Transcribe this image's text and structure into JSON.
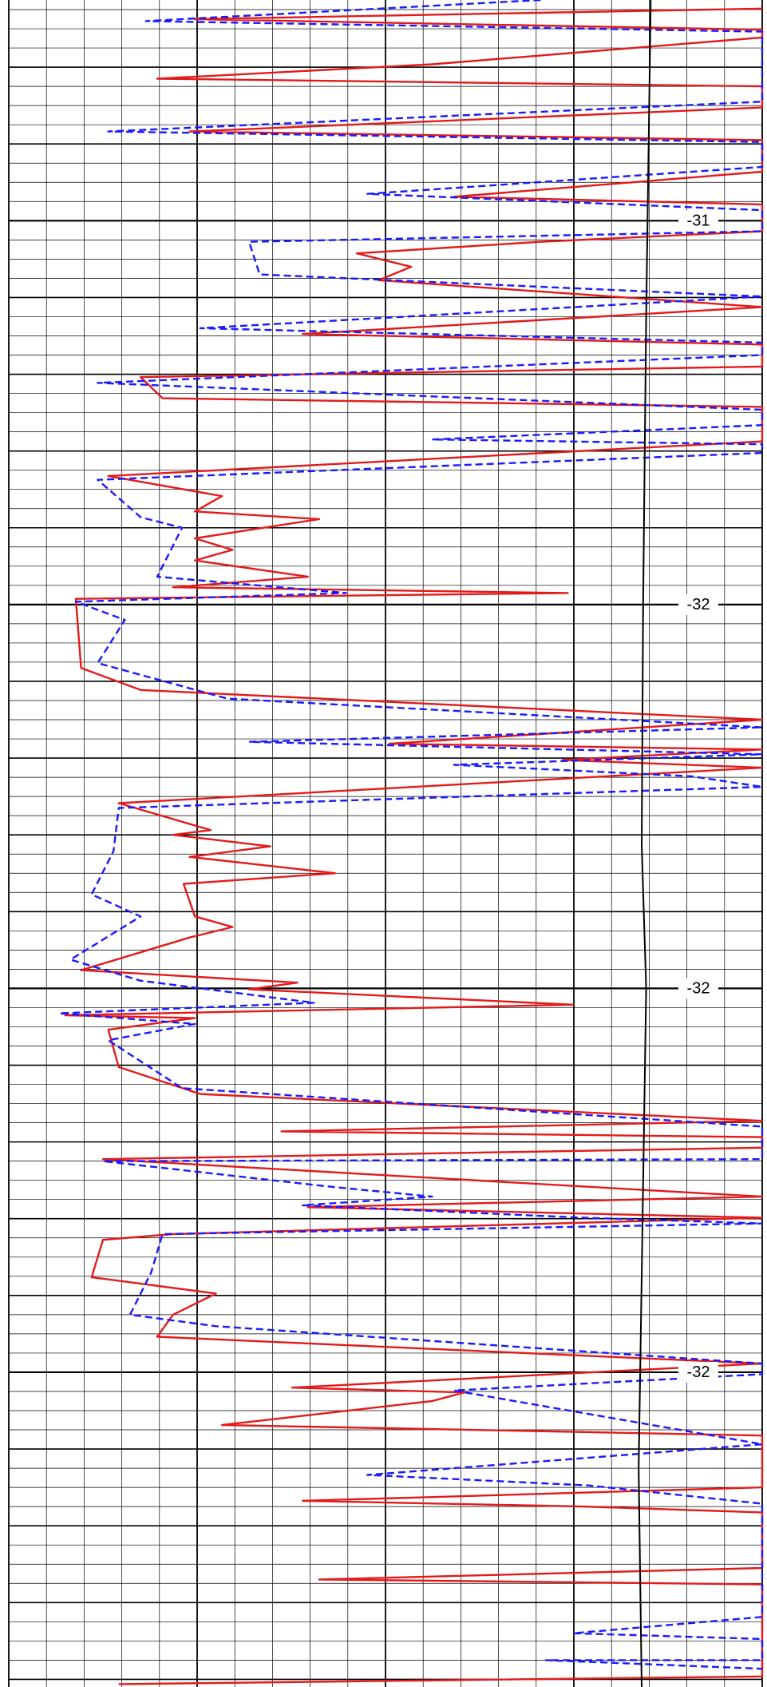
{
  "chart_data": {
    "type": "line",
    "xlim": [
      0,
      100
    ],
    "ylim": [
      -30.97,
      -32.728
    ],
    "yticks": [
      -31.2,
      -31.6,
      -32.0,
      -32.4
    ],
    "ytick_labels": [
      "-31",
      "-32",
      "-32",
      "-32"
    ],
    "grid": true,
    "series": [
      {
        "color": "#e41a1a",
        "dash": false,
        "values": [
          100,
          24.7,
          100,
          100,
          56.2,
          19.7,
          100,
          100,
          24.0,
          100,
          100,
          59.1,
          100,
          100,
          70.6,
          46.2,
          53.4,
          49.1,
          100,
          39.0,
          100,
          100,
          17.5,
          20.4,
          100,
          100,
          13.2,
          28.3,
          24.7,
          41.2,
          24.7,
          29.7,
          24.7,
          39.7,
          21.8,
          74.2,
          8.9,
          9.6,
          17.5,
          100,
          50.5,
          100,
          73.5,
          100,
          14.6,
          26.8,
          21.8,
          34.7,
          24.0,
          43.3,
          23.2,
          24.7,
          29.7,
          24.0,
          9.6,
          38.3,
          31.9,
          74.9,
          7.5,
          24.7,
          13.2,
          14.6,
          25.4,
          100,
          36.2,
          100,
          100,
          12.5,
          100,
          39.7,
          100,
          21.8,
          12.5,
          11.0,
          27.5,
          21.8,
          19.7,
          100,
          37.6,
          60.5,
          56.2,
          28.3,
          100,
          100,
          39.0,
          76.3,
          100,
          100,
          41.2,
          100,
          100,
          14.6
        ],
        "depth": [
          -30.979,
          -30.99,
          -31.001,
          -31.009,
          -31.037,
          -31.052,
          -31.06,
          -31.082,
          -31.107,
          -31.116,
          -31.149,
          -31.175,
          -31.183,
          -31.211,
          -31.222,
          -31.234,
          -31.248,
          -31.262,
          -31.29,
          -31.318,
          -31.329,
          -31.352,
          -31.363,
          -31.385,
          -31.394,
          -31.43,
          -31.466,
          -31.487,
          -31.503,
          -31.511,
          -31.531,
          -31.543,
          -31.554,
          -31.571,
          -31.582,
          -31.588,
          -31.594,
          -31.666,
          -31.689,
          -31.72,
          -31.745,
          -31.751,
          -31.762,
          -31.77,
          -31.807,
          -31.835,
          -31.84,
          -31.852,
          -31.863,
          -31.88,
          -31.891,
          -31.925,
          -31.936,
          -31.947,
          -31.981,
          -31.994,
          -32.001,
          -32.017,
          -32.028,
          -32.031,
          -32.043,
          -32.082,
          -32.11,
          -32.138,
          -32.149,
          -32.155,
          -32.166,
          -32.178,
          -32.217,
          -32.228,
          -32.239,
          -32.256,
          -32.262,
          -32.301,
          -32.318,
          -32.34,
          -32.363,
          -32.391,
          -32.416,
          -32.421,
          -32.43,
          -32.455,
          -32.466,
          -32.52,
          -32.534,
          -32.54,
          -32.546,
          -32.604,
          -32.616,
          -32.621,
          -32.717,
          -32.725
        ]
      },
      {
        "color": "#1a1aff",
        "dash": true,
        "values": [
          70.6,
          18.2,
          100,
          100,
          13.2,
          100,
          100,
          47.6,
          100,
          100,
          31.9,
          33.3,
          100,
          25.4,
          100,
          100,
          11.8,
          100,
          100,
          56.2,
          100,
          100,
          11.8,
          17.5,
          23.0,
          19.7,
          44.8,
          8.9,
          15.4,
          11.8,
          29.0,
          100,
          31.9,
          100,
          59.1,
          90.7,
          100,
          14.6,
          13.9,
          11.0,
          17.5,
          8.2,
          17.5,
          40.5,
          6.7,
          24.7,
          13.2,
          23.0,
          100,
          100,
          12.5,
          41.9,
          56.2,
          39.0,
          76.3,
          100,
          20.4,
          18.9,
          16.1,
          27.5,
          100,
          100,
          59.1,
          100,
          47.6,
          77.0,
          100,
          100,
          74.9,
          100,
          100,
          71.3,
          100
        ],
        "depth": [
          -30.97,
          -30.992,
          -31.003,
          -31.076,
          -31.107,
          -31.118,
          -31.144,
          -31.172,
          -31.189,
          -31.211,
          -31.222,
          -31.256,
          -31.279,
          -31.312,
          -31.327,
          -31.34,
          -31.369,
          -31.397,
          -31.413,
          -31.428,
          -31.433,
          -31.442,
          -31.47,
          -31.509,
          -31.52,
          -31.571,
          -31.588,
          -31.597,
          -31.616,
          -31.661,
          -31.698,
          -31.728,
          -31.743,
          -31.756,
          -31.767,
          -31.779,
          -31.79,
          -31.812,
          -31.857,
          -31.902,
          -31.925,
          -31.97,
          -31.992,
          -32.015,
          -32.026,
          -32.037,
          -32.054,
          -32.104,
          -32.144,
          -32.178,
          -32.18,
          -32.206,
          -32.217,
          -32.226,
          -32.239,
          -32.245,
          -32.256,
          -32.296,
          -32.34,
          -32.352,
          -32.391,
          -32.402,
          -32.419,
          -32.475,
          -32.507,
          -32.518,
          -32.537,
          -32.655,
          -32.672,
          -32.678,
          -32.7,
          -32.7,
          -32.709
        ]
      },
      {
        "color": "#000000",
        "dash": false,
        "values": [
          85.2,
          84.6,
          84.2,
          84.0,
          84.6,
          84.0,
          83.6,
          84.0
        ],
        "depth": [
          -30.97,
          -31.3,
          -31.6,
          -31.85,
          -32.0,
          -32.3,
          -32.5,
          -32.728
        ]
      }
    ]
  }
}
